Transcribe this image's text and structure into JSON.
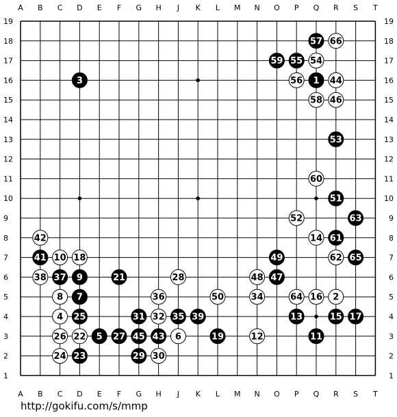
{
  "columns": [
    "A",
    "B",
    "C",
    "D",
    "E",
    "F",
    "G",
    "H",
    "J",
    "K",
    "L",
    "M",
    "N",
    "O",
    "P",
    "Q",
    "R",
    "S",
    "T"
  ],
  "rows": [
    "19",
    "18",
    "17",
    "16",
    "15",
    "14",
    "13",
    "12",
    "11",
    "10",
    "9",
    "8",
    "7",
    "6",
    "5",
    "4",
    "3",
    "2",
    "1"
  ],
  "hoshi": [
    "D16",
    "K16",
    "Q16",
    "D10",
    "K10",
    "Q10",
    "D4",
    "K4",
    "Q4"
  ],
  "colors": {
    "black": "#000000",
    "white": "#ffffff",
    "line": "#000000"
  },
  "stones": [
    {
      "n": "1",
      "c": "b",
      "p": "Q16"
    },
    {
      "n": "2",
      "c": "w",
      "p": "R5"
    },
    {
      "n": "3",
      "c": "b",
      "p": "D16"
    },
    {
      "n": "4",
      "c": "w",
      "p": "C4"
    },
    {
      "n": "5",
      "c": "b",
      "p": "E3"
    },
    {
      "n": "6",
      "c": "w",
      "p": "J3"
    },
    {
      "n": "7",
      "c": "b",
      "p": "D5"
    },
    {
      "n": "8",
      "c": "w",
      "p": "C5"
    },
    {
      "n": "9",
      "c": "b",
      "p": "D6"
    },
    {
      "n": "10",
      "c": "w",
      "p": "C7"
    },
    {
      "n": "11",
      "c": "b",
      "p": "Q3"
    },
    {
      "n": "12",
      "c": "w",
      "p": "N3"
    },
    {
      "n": "13",
      "c": "b",
      "p": "P4"
    },
    {
      "n": "14",
      "c": "w",
      "p": "Q8"
    },
    {
      "n": "15",
      "c": "b",
      "p": "R4"
    },
    {
      "n": "16",
      "c": "w",
      "p": "Q5"
    },
    {
      "n": "17",
      "c": "b",
      "p": "S4"
    },
    {
      "n": "18",
      "c": "w",
      "p": "D7"
    },
    {
      "n": "19",
      "c": "b",
      "p": "L3"
    },
    {
      "n": "21",
      "c": "b",
      "p": "F6"
    },
    {
      "n": "22",
      "c": "w",
      "p": "D3"
    },
    {
      "n": "23",
      "c": "b",
      "p": "D2"
    },
    {
      "n": "24",
      "c": "w",
      "p": "C2"
    },
    {
      "n": "25",
      "c": "b",
      "p": "D4"
    },
    {
      "n": "26",
      "c": "w",
      "p": "C3"
    },
    {
      "n": "27",
      "c": "b",
      "p": "F3"
    },
    {
      "n": "28",
      "c": "w",
      "p": "J6"
    },
    {
      "n": "29",
      "c": "b",
      "p": "G2"
    },
    {
      "n": "30",
      "c": "w",
      "p": "H2"
    },
    {
      "n": "31",
      "c": "b",
      "p": "G4"
    },
    {
      "n": "32",
      "c": "w",
      "p": "H4"
    },
    {
      "n": "34",
      "c": "w",
      "p": "N5"
    },
    {
      "n": "35",
      "c": "b",
      "p": "J4"
    },
    {
      "n": "36",
      "c": "w",
      "p": "H5"
    },
    {
      "n": "37",
      "c": "b",
      "p": "C6"
    },
    {
      "n": "38",
      "c": "w",
      "p": "B6"
    },
    {
      "n": "39",
      "c": "b",
      "p": "K4"
    },
    {
      "n": "41",
      "c": "b",
      "p": "B7"
    },
    {
      "n": "42",
      "c": "w",
      "p": "B8"
    },
    {
      "n": "43",
      "c": "b",
      "p": "H3"
    },
    {
      "n": "44",
      "c": "w",
      "p": "R16"
    },
    {
      "n": "45",
      "c": "b",
      "p": "G3"
    },
    {
      "n": "46",
      "c": "w",
      "p": "R15"
    },
    {
      "n": "47",
      "c": "b",
      "p": "O6"
    },
    {
      "n": "48",
      "c": "w",
      "p": "N6"
    },
    {
      "n": "49",
      "c": "b",
      "p": "O7"
    },
    {
      "n": "50",
      "c": "w",
      "p": "L5"
    },
    {
      "n": "51",
      "c": "b",
      "p": "R10"
    },
    {
      "n": "52",
      "c": "w",
      "p": "P9"
    },
    {
      "n": "53",
      "c": "b",
      "p": "R13"
    },
    {
      "n": "54",
      "c": "w",
      "p": "Q17"
    },
    {
      "n": "55",
      "c": "b",
      "p": "P17"
    },
    {
      "n": "56",
      "c": "w",
      "p": "P16"
    },
    {
      "n": "57",
      "c": "b",
      "p": "Q18"
    },
    {
      "n": "58",
      "c": "w",
      "p": "Q15"
    },
    {
      "n": "59",
      "c": "b",
      "p": "O17"
    },
    {
      "n": "60",
      "c": "w",
      "p": "Q11"
    },
    {
      "n": "61",
      "c": "b",
      "p": "R8"
    },
    {
      "n": "62",
      "c": "w",
      "p": "R7"
    },
    {
      "n": "63",
      "c": "b",
      "p": "S9"
    },
    {
      "n": "64",
      "c": "w",
      "p": "P5"
    },
    {
      "n": "65",
      "c": "b",
      "p": "S7"
    },
    {
      "n": "66",
      "c": "w",
      "p": "R18"
    }
  ],
  "footer": {
    "url": "http://gokifu.com/s/mmp"
  }
}
